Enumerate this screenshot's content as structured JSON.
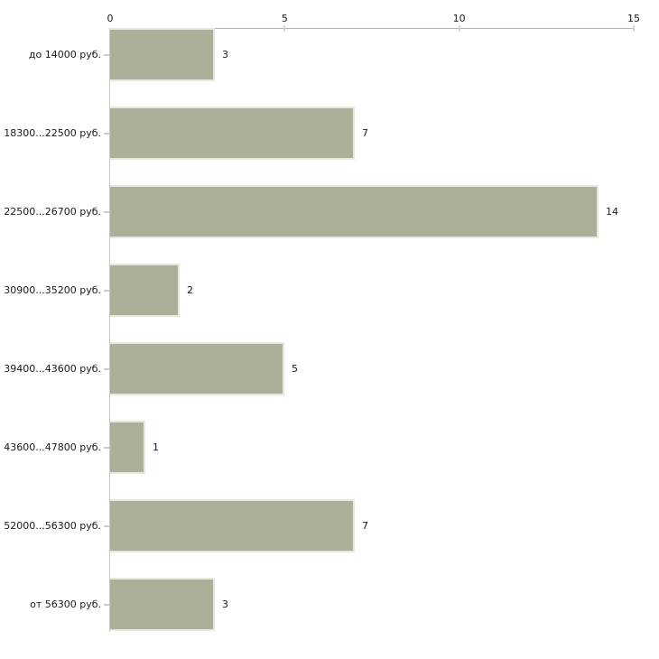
{
  "chart_data": {
    "type": "bar",
    "orientation": "horizontal",
    "title": "",
    "xlabel": "",
    "ylabel": "",
    "categories": [
      "до 14000 руб.",
      "18300...22500 руб.",
      "22500...26700 руб.",
      "30900...35200 руб.",
      "39400...43600 руб.",
      "43600...47800 руб.",
      "52000...56300 руб.",
      "от 56300 руб."
    ],
    "values": [
      3,
      7,
      14,
      2,
      5,
      1,
      7,
      3
    ],
    "value_labels": [
      "3",
      "7",
      "14",
      "2",
      "5",
      "1",
      "7",
      "3"
    ],
    "xlim": [
      0,
      15
    ],
    "x_ticks": [
      0,
      5,
      10,
      15
    ],
    "axis_position": "top",
    "grid": false,
    "legend": false,
    "colors": {
      "bar_fill": "#aab198",
      "bar_edge": "#e6e8de",
      "x_axis_line": "#b3b3b3",
      "y_axis_line": "#c9c9c9",
      "x_tick_mark": "#d5d8be",
      "category_tick_mark": "#cdd0bd",
      "text": "#1a1a1a",
      "background": "#ffffff"
    }
  }
}
